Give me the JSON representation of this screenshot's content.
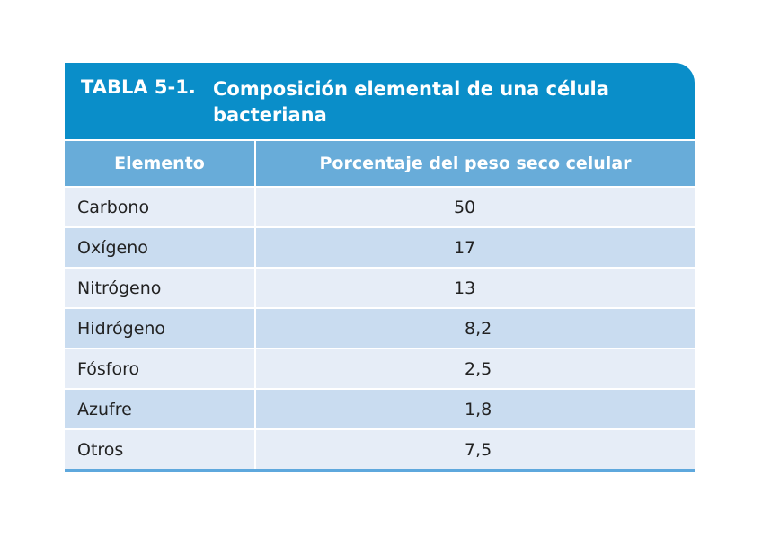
{
  "table": {
    "number": "TABLA 5-1.",
    "title": "Composición elemental de una célula bacteriana",
    "headers": [
      "Elemento",
      "Porcentaje del peso seco celular"
    ],
    "rows": [
      {
        "element": "Carbono",
        "percent": "50"
      },
      {
        "element": "Oxígeno",
        "percent": "17"
      },
      {
        "element": "Nitrógeno",
        "percent": "13"
      },
      {
        "element": "Hidrógeno",
        "percent": "8,2"
      },
      {
        "element": "Fósforo",
        "percent": "2,5"
      },
      {
        "element": "Azufre",
        "percent": "1,8"
      },
      {
        "element": "Otros",
        "percent": "7,5"
      }
    ],
    "colors": {
      "title_bg": "#0a8ec9",
      "header_bg": "#68acd9",
      "row_light": "#e6edf7",
      "row_dark": "#c9dcf0"
    }
  }
}
